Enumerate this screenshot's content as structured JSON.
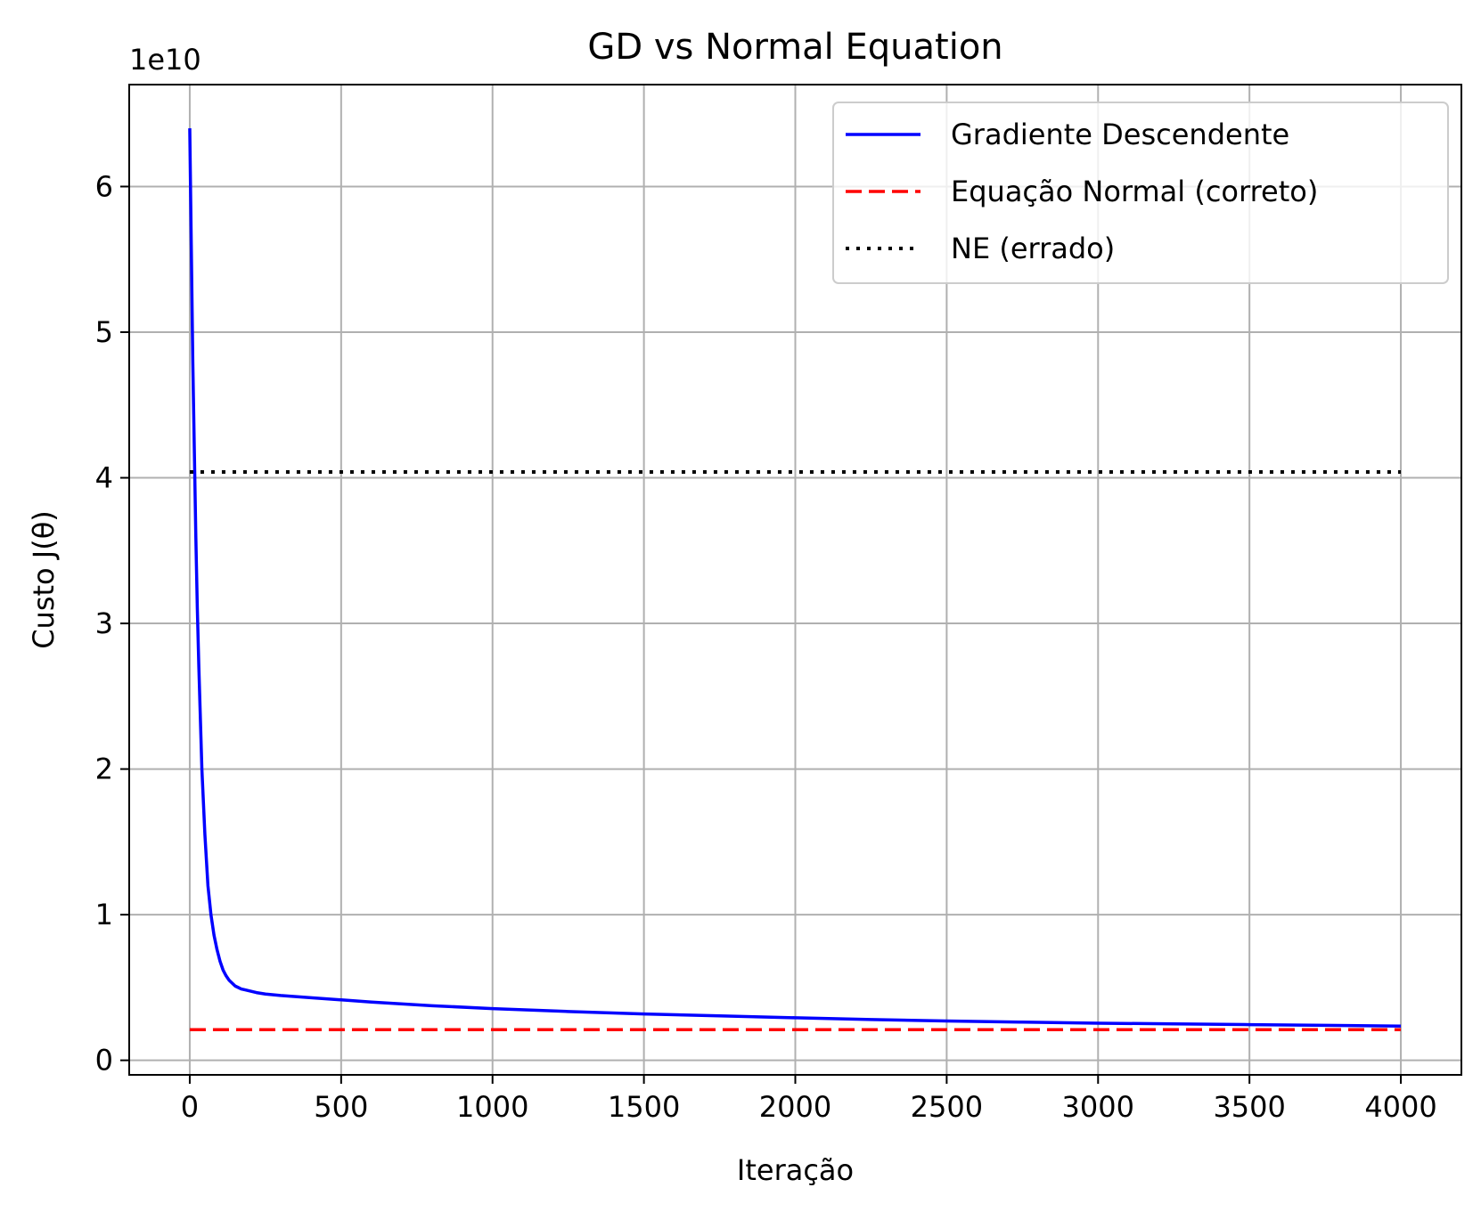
{
  "chart_data": {
    "type": "line",
    "title": "GD vs Normal Equation",
    "xlabel": "Iteração",
    "ylabel": "Custo J(θ)",
    "y_offset_label": "1e10",
    "xlim": [
      -200,
      4200
    ],
    "ylim": [
      -0.1,
      6.7
    ],
    "xticks": [
      0,
      500,
      1000,
      1500,
      2000,
      2500,
      3000,
      3500,
      4000
    ],
    "xtick_labels": [
      "0",
      "500",
      "1000",
      "1500",
      "2000",
      "2500",
      "3000",
      "3500",
      "4000"
    ],
    "yticks": [
      0,
      1,
      2,
      3,
      4,
      5,
      6
    ],
    "ytick_labels": [
      "0",
      "1",
      "2",
      "3",
      "4",
      "5",
      "6"
    ],
    "grid": true,
    "legend_position": "top-right",
    "series": [
      {
        "name": "Gradiente Descendente",
        "color": "#0000ff",
        "style": "solid",
        "x": [
          0,
          5,
          10,
          15,
          20,
          25,
          30,
          40,
          50,
          60,
          70,
          80,
          90,
          100,
          110,
          120,
          130,
          140,
          150,
          160,
          170,
          180,
          200,
          220,
          250,
          300,
          400,
          500,
          600,
          800,
          1000,
          1250,
          1500,
          1750,
          2000,
          2250,
          2500,
          2750,
          3000,
          3250,
          3500,
          3750,
          4000
        ],
        "y": [
          6.4,
          5.6,
          4.8,
          4.2,
          3.6,
          3.1,
          2.7,
          2.0,
          1.55,
          1.2,
          1.0,
          0.86,
          0.76,
          0.68,
          0.62,
          0.58,
          0.55,
          0.53,
          0.51,
          0.5,
          0.49,
          0.485,
          0.475,
          0.465,
          0.455,
          0.445,
          0.43,
          0.415,
          0.4,
          0.375,
          0.355,
          0.335,
          0.318,
          0.305,
          0.292,
          0.28,
          0.27,
          0.262,
          0.255,
          0.25,
          0.245,
          0.24,
          0.235
        ]
      },
      {
        "name": "Equação Normal (correto)",
        "color": "#ff0000",
        "style": "dashed",
        "x": [
          0,
          4000
        ],
        "y": [
          0.21,
          0.21
        ]
      },
      {
        "name": "NE (errado)",
        "color": "#000000",
        "style": "dotted",
        "x": [
          0,
          4000
        ],
        "y": [
          4.04,
          4.04
        ]
      }
    ]
  }
}
